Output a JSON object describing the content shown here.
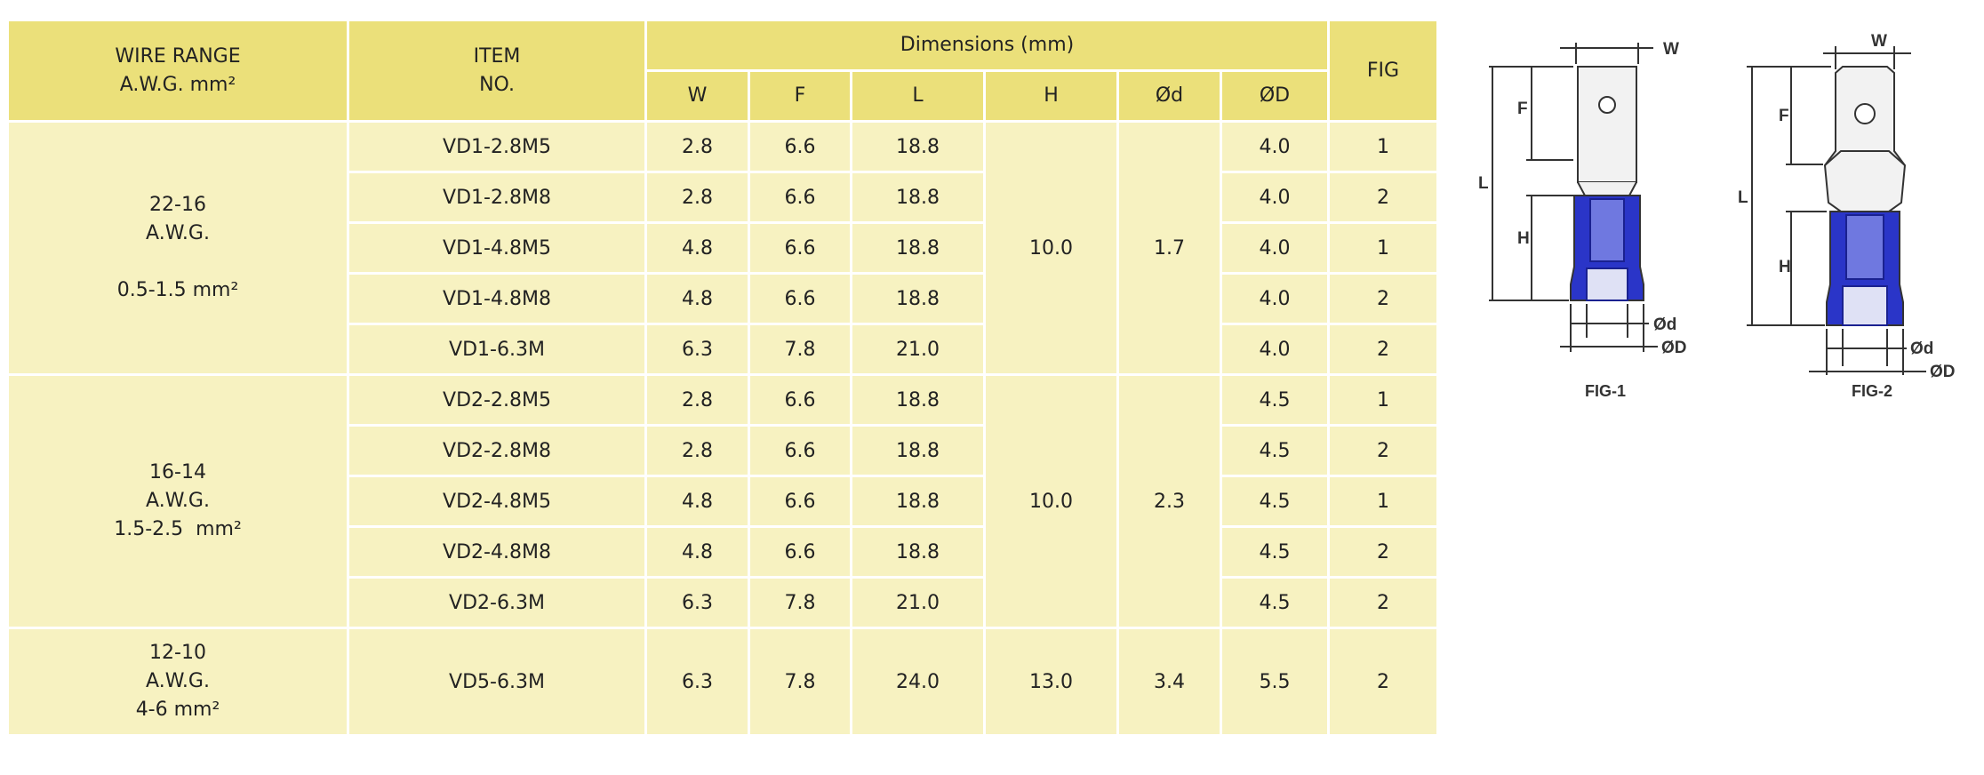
{
  "table": {
    "headers": {
      "wire_range": [
        "WIRE RANGE",
        "A.W.G. mm²"
      ],
      "item_no": [
        "ITEM",
        "NO."
      ],
      "dimensions": "Dimensions (mm)",
      "fig": "FIG",
      "dims": [
        "W",
        "F",
        "L",
        "H",
        "Ød",
        "ØD"
      ]
    },
    "groups": [
      {
        "range": [
          "22-16",
          "A.W.G.",
          "",
          "0.5-1.5 mm²"
        ],
        "H": "10.0",
        "d": "1.7",
        "rows": [
          {
            "item": "VD1-2.8M5",
            "W": "2.8",
            "F": "6.6",
            "L": "18.8",
            "D": "4.0",
            "fig": "1"
          },
          {
            "item": "VD1-2.8M8",
            "W": "2.8",
            "F": "6.6",
            "L": "18.8",
            "D": "4.0",
            "fig": "2"
          },
          {
            "item": "VD1-4.8M5",
            "W": "4.8",
            "F": "6.6",
            "L": "18.8",
            "D": "4.0",
            "fig": "1"
          },
          {
            "item": "VD1-4.8M8",
            "W": "4.8",
            "F": "6.6",
            "L": "18.8",
            "D": "4.0",
            "fig": "2"
          },
          {
            "item": "VD1-6.3M",
            "W": "6.3",
            "F": "7.8",
            "L": "21.0",
            "D": "4.0",
            "fig": "2"
          }
        ]
      },
      {
        "range": [
          "16-14",
          "A.W.G.",
          "1.5-2.5  mm²"
        ],
        "H": "10.0",
        "d": "2.3",
        "rows": [
          {
            "item": "VD2-2.8M5",
            "W": "2.8",
            "F": "6.6",
            "L": "18.8",
            "D": "4.5",
            "fig": "1"
          },
          {
            "item": "VD2-2.8M8",
            "W": "2.8",
            "F": "6.6",
            "L": "18.8",
            "D": "4.5",
            "fig": "2"
          },
          {
            "item": "VD2-4.8M5",
            "W": "4.8",
            "F": "6.6",
            "L": "18.8",
            "D": "4.5",
            "fig": "1"
          },
          {
            "item": "VD2-4.8M8",
            "W": "4.8",
            "F": "6.6",
            "L": "18.8",
            "D": "4.5",
            "fig": "2"
          },
          {
            "item": "VD2-6.3M",
            "W": "6.3",
            "F": "7.8",
            "L": "21.0",
            "D": "4.5",
            "fig": "2"
          }
        ]
      },
      {
        "range": [
          "12-10",
          "A.W.G.",
          "4-6 mm²"
        ],
        "H": "13.0",
        "d": "3.4",
        "rows": [
          {
            "item": "VD5-6.3M",
            "W": "6.3",
            "F": "7.8",
            "L": "24.0",
            "D": "5.5",
            "fig": "2"
          }
        ]
      }
    ]
  },
  "figures": {
    "labels": [
      "FIG-1",
      "FIG-2"
    ],
    "dim_labels": {
      "W": "W",
      "F": "F",
      "L": "L",
      "H": "H",
      "d": "Ød",
      "D": "ØD"
    },
    "colors": {
      "sleeve": "#2a35c8",
      "sleeve_dark": "#1a2190",
      "metal": "#f2f2f2",
      "outline": "#333333",
      "table_header": "#ebe07a",
      "table_body": "#f7f2c1"
    }
  }
}
